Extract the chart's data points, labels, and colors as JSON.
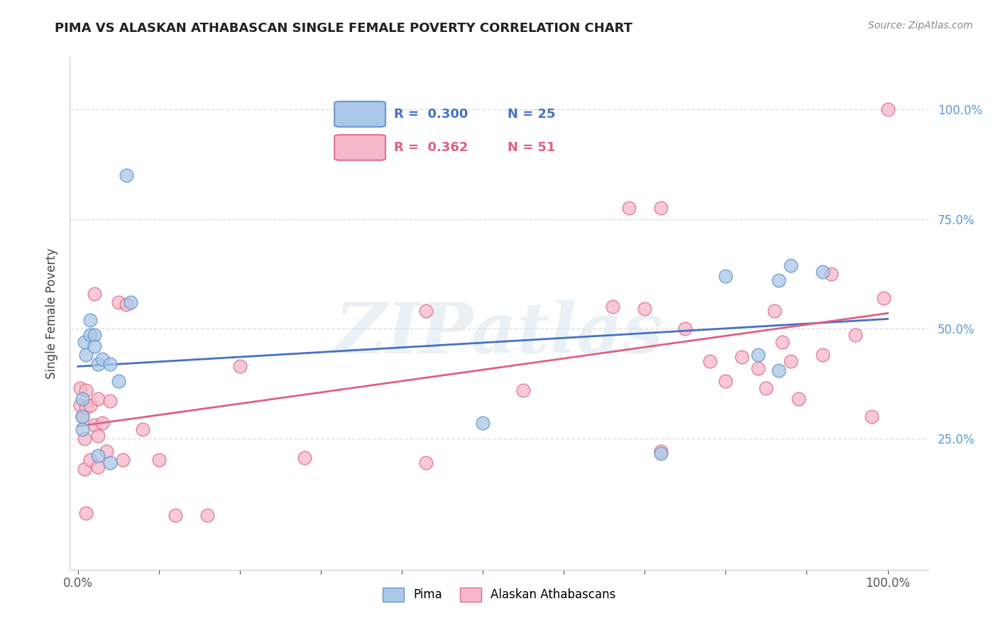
{
  "title": "PIMA VS ALASKAN ATHABASCAN SINGLE FEMALE POVERTY CORRELATION CHART",
  "source": "Source: ZipAtlas.com",
  "ylabel": "Single Female Poverty",
  "background_color": "#ffffff",
  "watermark": "ZIPatlas",
  "pima_r": "0.300",
  "pima_n": "25",
  "athabascan_r": "0.362",
  "athabascan_n": "51",
  "pima_fill_color": "#aac8e8",
  "athabascan_fill_color": "#f5b8c8",
  "pima_edge_color": "#6699cc",
  "athabascan_edge_color": "#e07090",
  "pima_line_color": "#4472c4",
  "athabascan_line_color": "#e06080",
  "grid_color": "#dddddd",
  "pima_x": [
    0.005,
    0.005,
    0.005,
    0.008,
    0.01,
    0.015,
    0.015,
    0.02,
    0.02,
    0.025,
    0.025,
    0.03,
    0.04,
    0.04,
    0.05,
    0.06,
    0.065,
    0.5,
    0.72,
    0.8,
    0.84,
    0.865,
    0.865,
    0.88,
    0.92
  ],
  "pima_y": [
    0.34,
    0.3,
    0.27,
    0.47,
    0.44,
    0.52,
    0.485,
    0.485,
    0.46,
    0.42,
    0.21,
    0.43,
    0.42,
    0.195,
    0.38,
    0.85,
    0.56,
    0.285,
    0.215,
    0.62,
    0.44,
    0.61,
    0.405,
    0.645,
    0.63
  ],
  "athabascan_x": [
    0.003,
    0.003,
    0.005,
    0.008,
    0.008,
    0.01,
    0.01,
    0.01,
    0.015,
    0.015,
    0.02,
    0.02,
    0.025,
    0.025,
    0.025,
    0.03,
    0.035,
    0.04,
    0.05,
    0.055,
    0.06,
    0.08,
    0.1,
    0.12,
    0.16,
    0.2,
    0.28,
    0.43,
    0.43,
    0.55,
    0.66,
    0.68,
    0.7,
    0.72,
    0.72,
    0.75,
    0.78,
    0.8,
    0.82,
    0.84,
    0.85,
    0.86,
    0.87,
    0.88,
    0.89,
    0.92,
    0.93,
    0.96,
    0.98,
    0.995,
    1.0
  ],
  "athabascan_y": [
    0.365,
    0.325,
    0.3,
    0.25,
    0.18,
    0.36,
    0.32,
    0.08,
    0.325,
    0.2,
    0.58,
    0.28,
    0.34,
    0.255,
    0.185,
    0.285,
    0.22,
    0.335,
    0.56,
    0.2,
    0.555,
    0.27,
    0.2,
    0.075,
    0.075,
    0.415,
    0.205,
    0.54,
    0.195,
    0.36,
    0.55,
    0.775,
    0.545,
    0.775,
    0.22,
    0.5,
    0.425,
    0.38,
    0.435,
    0.41,
    0.365,
    0.54,
    0.47,
    0.425,
    0.34,
    0.44,
    0.625,
    0.485,
    0.3,
    0.57,
    1.0
  ],
  "pima_reg": [
    0.415,
    0.625
  ],
  "athabascan_reg": [
    0.325,
    0.625
  ],
  "ylim": [
    -0.05,
    1.12
  ],
  "xlim": [
    -0.01,
    1.05
  ]
}
